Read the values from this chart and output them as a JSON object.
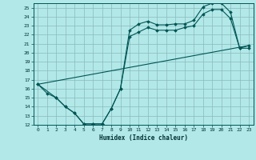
{
  "xlabel": "Humidex (Indice chaleur)",
  "background_color": "#b3e8e8",
  "grid_color": "#88bbbb",
  "line_color": "#005555",
  "xlim": [
    -0.5,
    23.5
  ],
  "ylim": [
    12,
    25.5
  ],
  "xticks": [
    0,
    1,
    2,
    3,
    4,
    5,
    6,
    7,
    8,
    9,
    10,
    11,
    12,
    13,
    14,
    15,
    16,
    17,
    18,
    19,
    20,
    21,
    22,
    23
  ],
  "yticks": [
    12,
    13,
    14,
    15,
    16,
    17,
    18,
    19,
    20,
    21,
    22,
    23,
    24,
    25
  ],
  "line1_x": [
    0,
    1,
    2,
    3,
    4,
    5,
    6,
    7,
    8,
    9,
    10,
    11,
    12,
    13,
    14,
    15,
    16,
    17,
    18,
    19,
    20,
    21,
    22,
    23
  ],
  "line1_y": [
    16.5,
    15.5,
    15.0,
    14.0,
    13.3,
    12.1,
    12.1,
    12.1,
    13.8,
    16.0,
    22.5,
    23.2,
    23.5,
    23.1,
    23.1,
    23.2,
    23.2,
    23.6,
    25.1,
    25.5,
    25.5,
    24.5,
    20.5,
    20.8
  ],
  "line2_x": [
    0,
    2,
    3,
    4,
    5,
    6,
    7,
    8,
    9,
    10,
    11,
    12,
    13,
    14,
    15,
    16,
    17,
    18,
    19,
    20,
    21,
    22,
    23
  ],
  "line2_y": [
    16.5,
    15.0,
    14.0,
    13.3,
    12.1,
    12.1,
    12.1,
    13.8,
    16.0,
    21.8,
    22.3,
    22.8,
    22.5,
    22.5,
    22.5,
    22.8,
    23.0,
    24.3,
    24.8,
    24.8,
    23.8,
    20.5,
    20.5
  ],
  "line3_x": [
    0,
    23
  ],
  "line3_y": [
    16.5,
    20.8
  ]
}
